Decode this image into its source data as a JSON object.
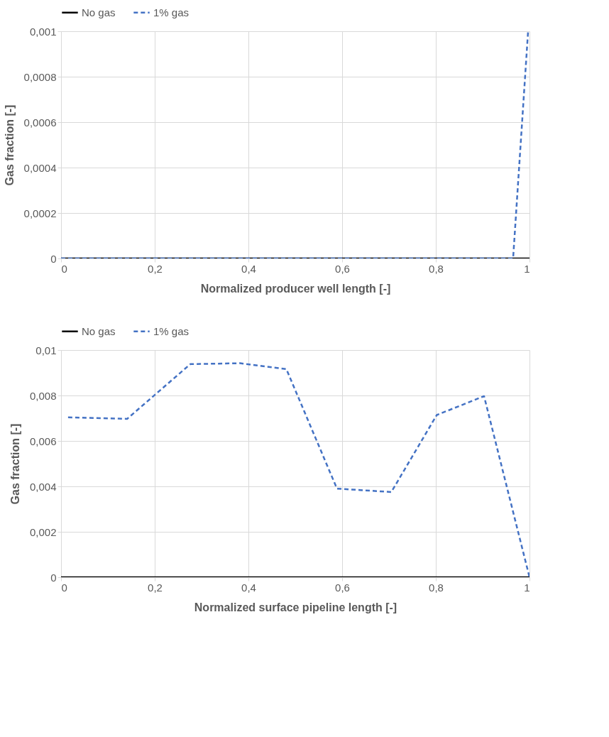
{
  "chart_data": [
    {
      "type": "line",
      "xlabel": "Normalized producer well length [-]",
      "ylabel": "Gas fraction [-]",
      "xlim": [
        0,
        1
      ],
      "xticks": [
        0,
        {
          "value": 0.2,
          "label": "0,2"
        },
        {
          "value": 0.4,
          "label": "0,4"
        },
        {
          "value": 0.6,
          "label": "0,6"
        },
        {
          "value": 0.8,
          "label": "0,8"
        },
        1
      ],
      "ylim": [
        0,
        0.001
      ],
      "yticks": [
        0,
        {
          "value": 0.0002,
          "label": "0,0002"
        },
        {
          "value": 0.0004,
          "label": "0,0004"
        },
        {
          "value": 0.0006,
          "label": "0,0006"
        },
        {
          "value": 0.0008,
          "label": "0,0008"
        },
        {
          "value": 0.001,
          "label": "0,001"
        }
      ],
      "grid": true,
      "legend": "top",
      "marker": "none",
      "series": [
        {
          "name": "No gas",
          "color": "#000000",
          "line_style": "solid",
          "x": [
            0,
            1
          ],
          "values": [
            0,
            0
          ]
        },
        {
          "name": "1% gas",
          "color": "#4472c4",
          "line_style": "dashed",
          "x": [
            0,
            0.965,
            0.997
          ],
          "values": [
            0,
            0,
            0.001
          ]
        }
      ]
    },
    {
      "type": "line",
      "xlabel": "Normalized surface pipeline length [-]",
      "ylabel": "Gas fraction [-]",
      "xlim": [
        0,
        1
      ],
      "xticks": [
        0,
        {
          "value": 0.2,
          "label": "0,2"
        },
        {
          "value": 0.4,
          "label": "0,4"
        },
        {
          "value": 0.6,
          "label": "0,6"
        },
        {
          "value": 0.8,
          "label": "0,8"
        },
        1
      ],
      "ylim": [
        0,
        0.01
      ],
      "yticks": [
        0,
        {
          "value": 0.002,
          "label": "0,002"
        },
        {
          "value": 0.004,
          "label": "0,004"
        },
        {
          "value": 0.006,
          "label": "0,006"
        },
        {
          "value": 0.008,
          "label": "0,008"
        },
        {
          "value": 0.01,
          "label": "0,01"
        }
      ],
      "grid": true,
      "legend": "top",
      "marker": "none",
      "series": [
        {
          "name": "No gas",
          "color": "#000000",
          "line_style": "solid",
          "x": [
            0,
            1
          ],
          "values": [
            0,
            0
          ]
        },
        {
          "name": "1% gas",
          "color": "#4472c4",
          "line_style": "dashed",
          "x": [
            0.015,
            0.141,
            0.276,
            0.382,
            0.481,
            0.589,
            0.705,
            0.802,
            0.903,
            1.0
          ],
          "values": [
            0.00704,
            0.00697,
            0.00938,
            0.00942,
            0.00916,
            0.0039,
            0.00375,
            0.00714,
            0.00797,
            0
          ]
        }
      ]
    }
  ]
}
